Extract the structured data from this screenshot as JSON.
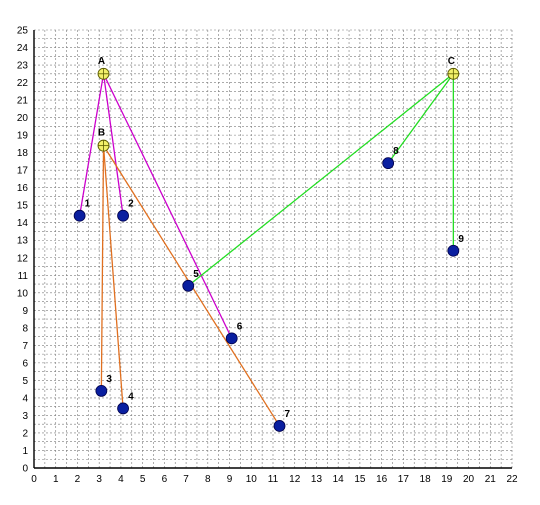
{
  "chart_data": {
    "type": "scatter",
    "xlim": [
      0,
      22
    ],
    "ylim": [
      0,
      25
    ],
    "x_ticks": [
      "0",
      "1",
      "2",
      "3",
      "4",
      "5",
      "6",
      "7",
      "8",
      "9",
      "10",
      "11",
      "12",
      "13",
      "14",
      "15",
      "16",
      "17",
      "18",
      "19",
      "20",
      "21",
      "22"
    ],
    "y_ticks": [
      "0",
      "1",
      "2",
      "3",
      "4",
      "5",
      "6",
      "7",
      "8",
      "9",
      "10",
      "11",
      "12",
      "13",
      "14",
      "15",
      "16",
      "17",
      "18",
      "19",
      "20",
      "21",
      "22",
      "23",
      "24",
      "25"
    ],
    "grid": true,
    "hubs": [
      {
        "label": "A",
        "x": 3.2,
        "y": 22.5,
        "color": "#cc00cc"
      },
      {
        "label": "B",
        "x": 3.2,
        "y": 18.4,
        "color": "#e07020"
      },
      {
        "label": "C",
        "x": 19.3,
        "y": 22.5,
        "color": "#22dd22"
      }
    ],
    "points": [
      {
        "label": "1",
        "x": 2.1,
        "y": 14.4
      },
      {
        "label": "2",
        "x": 4.1,
        "y": 14.4
      },
      {
        "label": "3",
        "x": 3.1,
        "y": 4.4
      },
      {
        "label": "4",
        "x": 4.1,
        "y": 3.4
      },
      {
        "label": "5",
        "x": 7.1,
        "y": 10.4
      },
      {
        "label": "6",
        "x": 9.1,
        "y": 7.4
      },
      {
        "label": "7",
        "x": 11.3,
        "y": 2.4
      },
      {
        "label": "8",
        "x": 16.3,
        "y": 17.4
      },
      {
        "label": "9",
        "x": 19.3,
        "y": 12.4
      }
    ],
    "connections": [
      {
        "hub": "A",
        "targets": [
          "1",
          "2",
          "6"
        ]
      },
      {
        "hub": "B",
        "targets": [
          "3",
          "4",
          "7"
        ]
      },
      {
        "hub": "C",
        "targets": [
          "5",
          "8",
          "9"
        ]
      }
    ],
    "point_color": "#0a1fa0",
    "hub_fill": "#f2f06a"
  }
}
